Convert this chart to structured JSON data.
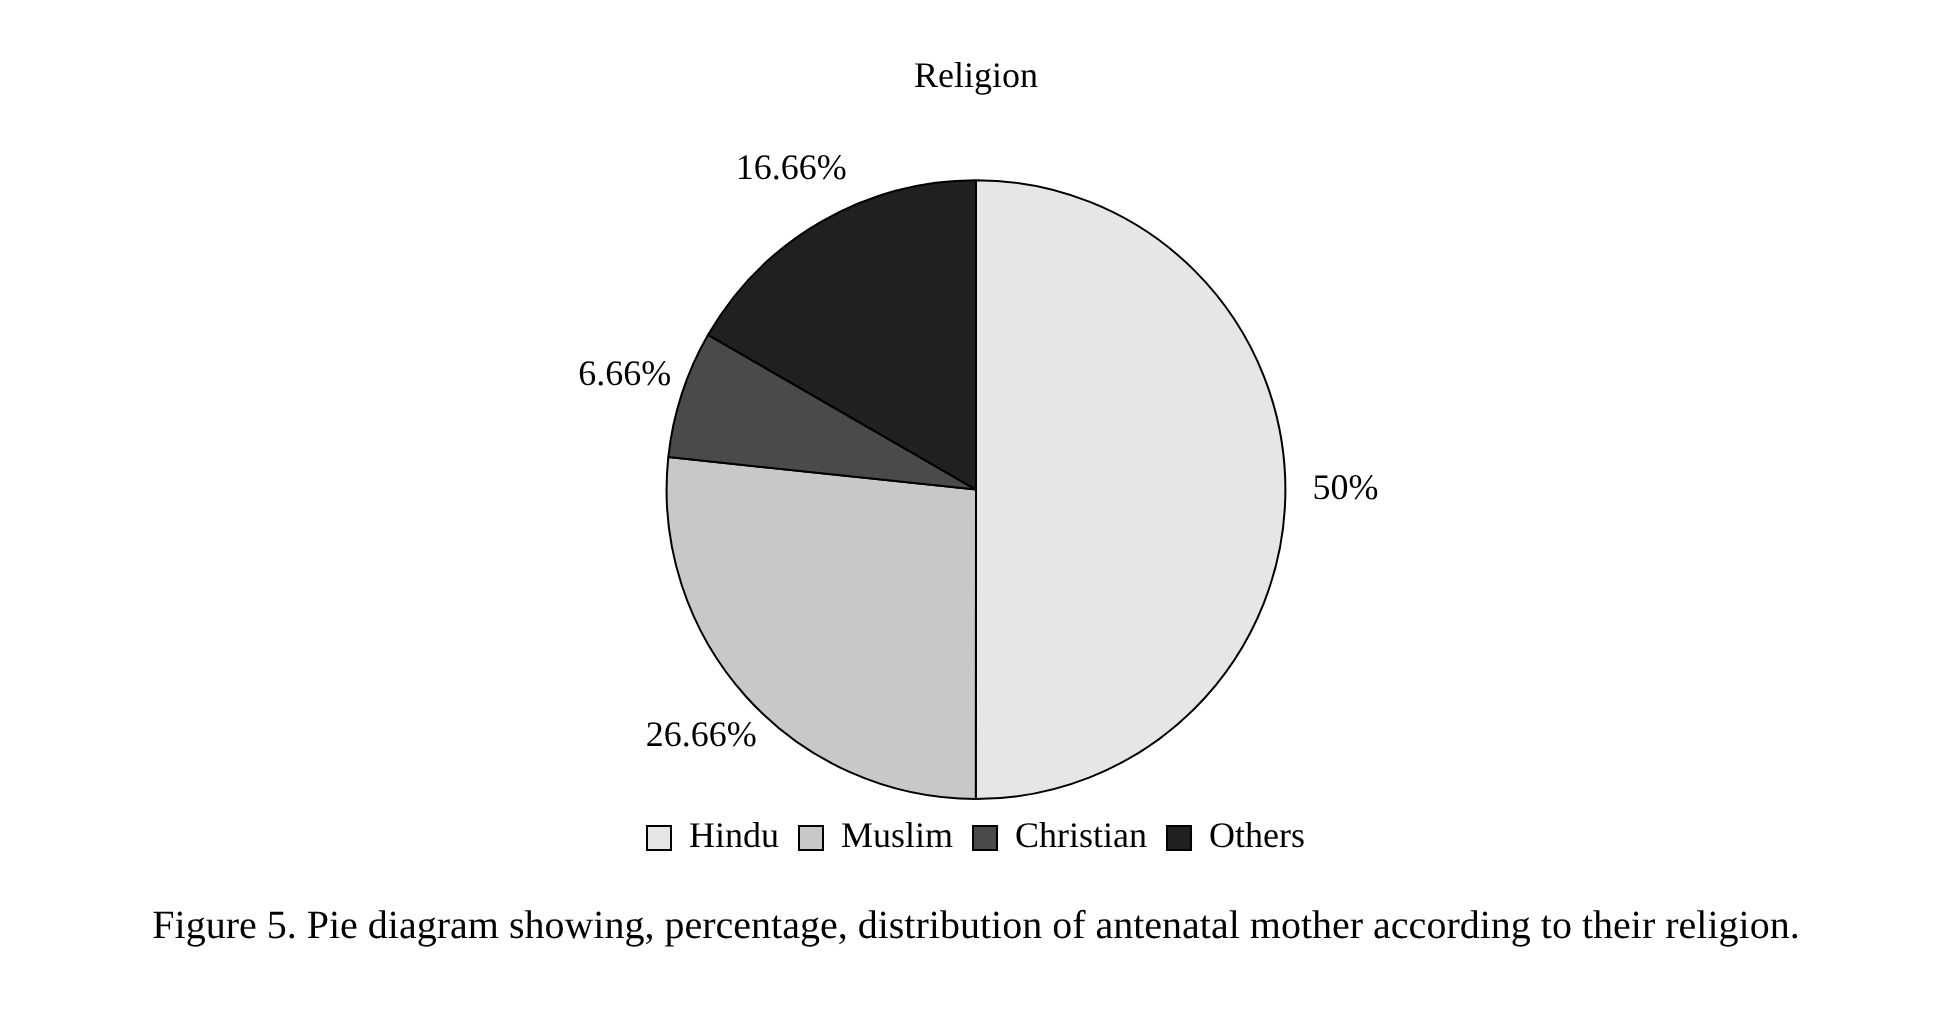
{
  "chart_data": {
    "type": "pie",
    "title": "Religion",
    "categories": [
      "Hindu",
      "Muslim",
      "Christian",
      "Others"
    ],
    "values": [
      50,
      26.66,
      6.66,
      16.66
    ],
    "value_labels": [
      "50%",
      "26.66%",
      "6.66%",
      "16.66%"
    ],
    "colors": [
      "#e6e6e6",
      "#c8c8c8",
      "#4a4a4a",
      "#202020"
    ],
    "legend": "bottom",
    "annotations": [
      "Figure 5. Pie diagram showing, percentage, distribution of antenatal mother according to their religion."
    ]
  }
}
